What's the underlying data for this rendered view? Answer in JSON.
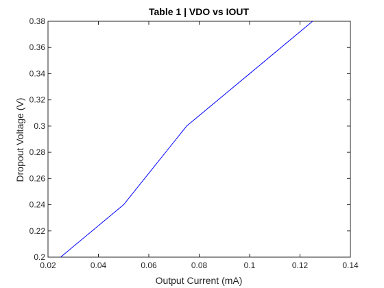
{
  "chart_data": {
    "type": "line",
    "title": "Table 1 | VDO vs IOUT",
    "xlabel": "Output Current (mA)",
    "ylabel": "Dropout Voltage (V)",
    "xlim": [
      0.02,
      0.14
    ],
    "ylim": [
      0.2,
      0.38
    ],
    "x_ticks": [
      "0.02",
      "0.04",
      "0.06",
      "0.08",
      "0.1",
      "0.12",
      "0.14"
    ],
    "y_ticks": [
      "0.2",
      "0.22",
      "0.24",
      "0.26",
      "0.28",
      "0.3",
      "0.32",
      "0.34",
      "0.36",
      "0.38"
    ],
    "grid": false,
    "box": true,
    "series": [
      {
        "x": [
          0.025,
          0.05,
          0.075,
          0.1,
          0.125
        ],
        "y": [
          0.2,
          0.24,
          0.3,
          0.34,
          0.38
        ],
        "color": "#0000ff"
      }
    ],
    "axis_color": "#262626",
    "background": "#ffffff"
  }
}
